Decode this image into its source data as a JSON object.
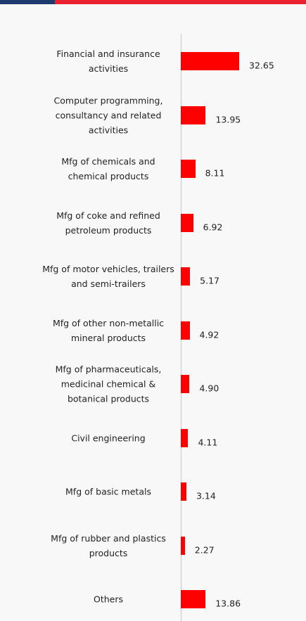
{
  "chart_data": {
    "type": "barh",
    "categories": [
      "Financial and insurance activities",
      "Computer programming, consultancy and related activities",
      "Mfg of chemicals and chemical products",
      "Mfg of coke and refined petroleum products",
      "Mfg of motor vehicles, trailers and semi-trailers",
      "Mfg of other non-metallic mineral products",
      "Mfg of pharmaceuticals, medicinal chemical & botanical products",
      "Civil engineering",
      "Mfg of basic metals",
      "Mfg of rubber and plastics products",
      "Others"
    ],
    "values": [
      32.65,
      13.95,
      8.11,
      6.92,
      5.17,
      4.92,
      4.9,
      4.11,
      3.14,
      2.27,
      13.86
    ],
    "value_labels": [
      "32.65",
      "13.95",
      "8.11",
      "6.92",
      "5.17",
      "4.92",
      "4.90",
      "4.11",
      "3.14",
      "2.27",
      "13.86"
    ],
    "color": "#ff0000",
    "xlim": [
      0,
      70
    ]
  }
}
